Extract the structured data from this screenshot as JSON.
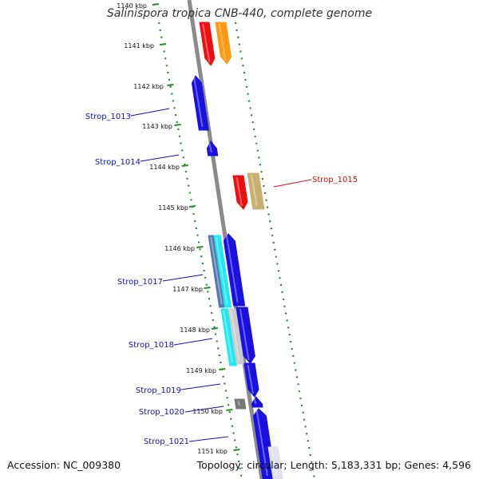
{
  "title": "Salinispora tropica CNB-440, complete genome",
  "accession_text": "Accession: NC_009380",
  "summary_text": "Topology: circular; Length: 5,183,331 bp; Genes: 4,596",
  "ticks": [
    "1140 kbp",
    "1141 kbp",
    "1142 kbp",
    "1143 kbp",
    "1144 kbp",
    "1145 kbp",
    "1146 kbp",
    "1147 kbp",
    "1148 kbp",
    "1149 kbp",
    "1150 kbp",
    "1151 kbp"
  ],
  "gene_labels": [
    {
      "text": "Strop_1013",
      "color": "#1010c8"
    },
    {
      "text": "Strop_1014",
      "color": "#1010c8"
    },
    {
      "text": "Strop_1015",
      "color": "#d01010"
    },
    {
      "text": "Strop_1017",
      "color": "#1010c8"
    },
    {
      "text": "Strop_1018",
      "color": "#1010c8"
    },
    {
      "text": "Strop_1019",
      "color": "#1010c8"
    },
    {
      "text": "Strop_1020",
      "color": "#1010c8"
    },
    {
      "text": "Strop_1021",
      "color": "#1010c8"
    }
  ],
  "colors": {
    "backbone": "#8a8a8a",
    "dotted_ring": "#2a8a2a",
    "gene_blue": "#1a10e0",
    "gene_red": "#ee1010",
    "gene_orange": "#ff9910",
    "gene_khaki": "#c8b070",
    "gene_cyan": "#20e8f0",
    "gene_steel": "#5878b0",
    "gene_gray": "#777777"
  }
}
